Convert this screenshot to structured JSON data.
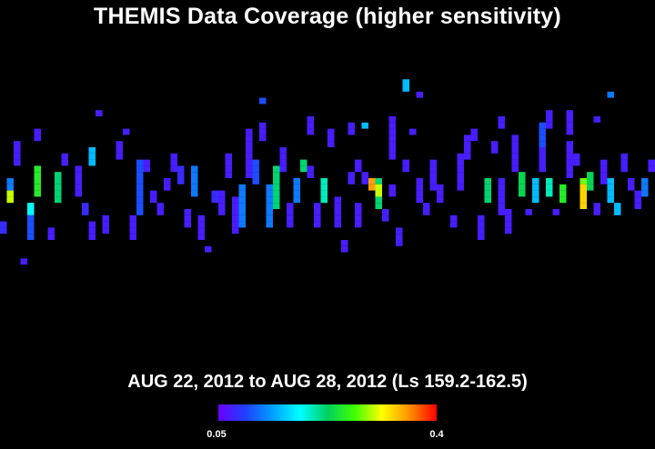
{
  "chart_data": {
    "type": "heatmap",
    "title": "THEMIS Data Coverage (higher sensitivity)",
    "subtitle": "AUG 22, 2012 to AUG 28, 2012 (Ls 159.2-162.5)",
    "colorbar": {
      "min_label": "0.05",
      "max_label": "0.4",
      "min": 0.05,
      "max": 0.4,
      "colors": [
        "#6a00ff",
        "#2040ff",
        "#00a0ff",
        "#00ffff",
        "#00d060",
        "#40ff00",
        "#ffff00",
        "#ff9000",
        "#ff0000"
      ]
    },
    "grid": {
      "columns": 96,
      "rows": 50
    },
    "tracks": [
      {
        "col": 0,
        "rows": [
          27,
          28
        ],
        "v": 0.08
      },
      {
        "col": 1,
        "rows": [
          20,
          21
        ],
        "v": 0.12
      },
      {
        "col": 1,
        "rows": [
          22,
          23
        ],
        "v": 0.3
      },
      {
        "col": 2,
        "rows": [
          14,
          15,
          16,
          17
        ],
        "v": 0.07
      },
      {
        "col": 3,
        "rows": [
          33
        ],
        "v": 0.07
      },
      {
        "col": 4,
        "rows": [
          24,
          25
        ],
        "v": 0.18
      },
      {
        "col": 4,
        "rows": [
          26,
          27,
          28,
          29
        ],
        "v": 0.1
      },
      {
        "col": 5,
        "rows": [
          12,
          13
        ],
        "v": 0.07
      },
      {
        "col": 5,
        "rows": [
          18,
          19,
          20,
          21,
          22
        ],
        "v": 0.25
      },
      {
        "col": 7,
        "rows": [
          28,
          29
        ],
        "v": 0.07
      },
      {
        "col": 8,
        "rows": [
          19,
          20,
          21,
          22,
          23
        ],
        "v": 0.22
      },
      {
        "col": 9,
        "rows": [
          16,
          17
        ],
        "v": 0.07
      },
      {
        "col": 11,
        "rows": [
          18,
          19,
          20,
          21,
          22
        ],
        "v": 0.07
      },
      {
        "col": 12,
        "rows": [
          24,
          25
        ],
        "v": 0.08
      },
      {
        "col": 13,
        "rows": [
          15,
          16,
          17
        ],
        "v": 0.15
      },
      {
        "col": 13,
        "rows": [
          27,
          28,
          29
        ],
        "v": 0.07
      },
      {
        "col": 14,
        "rows": [
          9
        ],
        "v": 0.07
      },
      {
        "col": 15,
        "rows": [
          26,
          27,
          28
        ],
        "v": 0.07
      },
      {
        "col": 17,
        "rows": [
          14,
          15,
          16
        ],
        "v": 0.07
      },
      {
        "col": 18,
        "rows": [
          12
        ],
        "v": 0.07
      },
      {
        "col": 19,
        "rows": [
          26,
          27,
          28,
          29
        ],
        "v": 0.07
      },
      {
        "col": 20,
        "rows": [
          17,
          18,
          19,
          20,
          21,
          22,
          23,
          24,
          25
        ],
        "v": 0.1
      },
      {
        "col": 21,
        "rows": [
          17,
          18
        ],
        "v": 0.07
      },
      {
        "col": 22,
        "rows": [
          22,
          23
        ],
        "v": 0.07
      },
      {
        "col": 23,
        "rows": [
          24,
          25
        ],
        "v": 0.07
      },
      {
        "col": 24,
        "rows": [
          20,
          21
        ],
        "v": 0.07
      },
      {
        "col": 25,
        "rows": [
          16,
          17,
          18
        ],
        "v": 0.07
      },
      {
        "col": 26,
        "rows": [
          18,
          19,
          20
        ],
        "v": 0.08
      },
      {
        "col": 27,
        "rows": [
          25,
          26,
          27
        ],
        "v": 0.07
      },
      {
        "col": 28,
        "rows": [
          18,
          19,
          20,
          21,
          22
        ],
        "v": 0.12
      },
      {
        "col": 29,
        "rows": [
          26,
          27,
          28,
          29
        ],
        "v": 0.07
      },
      {
        "col": 30,
        "rows": [
          31
        ],
        "v": 0.07
      },
      {
        "col": 31,
        "rows": [
          22,
          23
        ],
        "v": 0.08
      },
      {
        "col": 32,
        "rows": [
          22,
          23,
          24,
          25
        ],
        "v": 0.07
      },
      {
        "col": 33,
        "rows": [
          16,
          17,
          18,
          19
        ],
        "v": 0.07
      },
      {
        "col": 34,
        "rows": [
          23,
          24,
          25,
          26,
          27,
          28
        ],
        "v": 0.07
      },
      {
        "col": 35,
        "rows": [
          21,
          22,
          23,
          24,
          25,
          26,
          27
        ],
        "v": 0.12
      },
      {
        "col": 36,
        "rows": [
          12,
          13,
          14,
          15,
          16,
          17,
          18,
          19
        ],
        "v": 0.07
      },
      {
        "col": 37,
        "rows": [
          17,
          18,
          19,
          20
        ],
        "v": 0.1
      },
      {
        "col": 38,
        "rows": [
          7
        ],
        "v": 0.1
      },
      {
        "col": 38,
        "rows": [
          11,
          12,
          13
        ],
        "v": 0.07
      },
      {
        "col": 39,
        "rows": [
          21,
          22,
          23,
          24,
          25,
          26,
          27
        ],
        "v": 0.12
      },
      {
        "col": 40,
        "rows": [
          18,
          19,
          20,
          21,
          22,
          23,
          24
        ],
        "v": 0.22
      },
      {
        "col": 41,
        "rows": [
          15,
          16,
          17,
          18
        ],
        "v": 0.07
      },
      {
        "col": 42,
        "rows": [
          24,
          25,
          26,
          27
        ],
        "v": 0.07
      },
      {
        "col": 43,
        "rows": [
          20,
          21,
          22,
          23
        ],
        "v": 0.12
      },
      {
        "col": 44,
        "rows": [
          17,
          18
        ],
        "v": 0.22
      },
      {
        "col": 45,
        "rows": [
          10,
          11,
          12
        ],
        "v": 0.07
      },
      {
        "col": 45,
        "rows": [
          18,
          19
        ],
        "v": 0.07
      },
      {
        "col": 46,
        "rows": [
          24,
          25,
          26,
          27
        ],
        "v": 0.07
      },
      {
        "col": 47,
        "rows": [
          20,
          21,
          22,
          23
        ],
        "v": 0.2
      },
      {
        "col": 48,
        "rows": [
          12,
          13,
          14
        ],
        "v": 0.07
      },
      {
        "col": 49,
        "rows": [
          23,
          24,
          25,
          26,
          27
        ],
        "v": 0.07
      },
      {
        "col": 50,
        "rows": [
          30,
          31
        ],
        "v": 0.07
      },
      {
        "col": 51,
        "rows": [
          11,
          12
        ],
        "v": 0.07
      },
      {
        "col": 51,
        "rows": [
          19,
          20
        ],
        "v": 0.07
      },
      {
        "col": 52,
        "rows": [
          17,
          18
        ],
        "v": 0.07
      },
      {
        "col": 52,
        "rows": [
          24,
          25,
          26,
          27
        ],
        "v": 0.07
      },
      {
        "col": 53,
        "rows": [
          11
        ],
        "v": 0.15
      },
      {
        "col": 53,
        "rows": [
          19,
          20
        ],
        "v": 0.07
      },
      {
        "col": 54,
        "rows": [
          20,
          21
        ],
        "v": 0.35
      },
      {
        "col": 55,
        "rows": [
          20,
          21,
          22,
          23,
          24
        ],
        "v": 0.22
      },
      {
        "col": 55,
        "rows": [
          21,
          22
        ],
        "v": 0.3
      },
      {
        "col": 56,
        "rows": [
          25,
          26
        ],
        "v": 0.07
      },
      {
        "col": 57,
        "rows": [
          10,
          11,
          12,
          13,
          14,
          15,
          16
        ],
        "v": 0.07
      },
      {
        "col": 57,
        "rows": [
          21,
          22
        ],
        "v": 0.07
      },
      {
        "col": 58,
        "rows": [
          28,
          29
        ],
        "v": 0.07
      },
      {
        "col": 58,
        "rows": [
          30
        ],
        "v": 0.07
      },
      {
        "col": 59,
        "rows": [
          4,
          5
        ],
        "v": 0.15
      },
      {
        "col": 59,
        "rows": [
          17,
          18
        ],
        "v": 0.07
      },
      {
        "col": 60,
        "rows": [
          12
        ],
        "v": 0.07
      },
      {
        "col": 61,
        "rows": [
          6
        ],
        "v": 0.07
      },
      {
        "col": 61,
        "rows": [
          20,
          21,
          22,
          23
        ],
        "v": 0.07
      },
      {
        "col": 62,
        "rows": [
          24,
          25
        ],
        "v": 0.07
      },
      {
        "col": 63,
        "rows": [
          17,
          18,
          19,
          20,
          21
        ],
        "v": 0.07
      },
      {
        "col": 64,
        "rows": [
          21,
          22,
          23
        ],
        "v": 0.07
      },
      {
        "col": 66,
        "rows": [
          26,
          27
        ],
        "v": 0.07
      },
      {
        "col": 67,
        "rows": [
          16,
          17,
          18,
          19,
          20,
          21
        ],
        "v": 0.07
      },
      {
        "col": 68,
        "rows": [
          13,
          14,
          15,
          16
        ],
        "v": 0.07
      },
      {
        "col": 69,
        "rows": [
          12,
          13
        ],
        "v": 0.07
      },
      {
        "col": 70,
        "rows": [
          26,
          27,
          28,
          29
        ],
        "v": 0.07
      },
      {
        "col": 71,
        "rows": [
          20,
          21,
          22,
          23
        ],
        "v": 0.22
      },
      {
        "col": 72,
        "rows": [
          14,
          15
        ],
        "v": 0.07
      },
      {
        "col": 73,
        "rows": [
          10,
          11
        ],
        "v": 0.07
      },
      {
        "col": 73,
        "rows": [
          20,
          21,
          22,
          23,
          24,
          25
        ],
        "v": 0.07
      },
      {
        "col": 74,
        "rows": [
          25,
          26,
          27,
          28
        ],
        "v": 0.07
      },
      {
        "col": 75,
        "rows": [
          13,
          14,
          15,
          16,
          17,
          18
        ],
        "v": 0.07
      },
      {
        "col": 76,
        "rows": [
          19,
          20,
          21,
          22
        ],
        "v": 0.23
      },
      {
        "col": 77,
        "rows": [
          25
        ],
        "v": 0.07
      },
      {
        "col": 78,
        "rows": [
          20,
          21,
          22,
          23
        ],
        "v": 0.15
      },
      {
        "col": 79,
        "rows": [
          11,
          12,
          13,
          14,
          15,
          16,
          17
        ],
        "v": 0.1
      },
      {
        "col": 79,
        "rows": [
          15,
          16,
          17,
          18
        ],
        "v": 0.07
      },
      {
        "col": 80,
        "rows": [
          9,
          10,
          11
        ],
        "v": 0.07
      },
      {
        "col": 80,
        "rows": [
          20,
          21,
          22
        ],
        "v": 0.2
      },
      {
        "col": 81,
        "rows": [
          25
        ],
        "v": 0.07
      },
      {
        "col": 82,
        "rows": [
          21,
          22,
          23
        ],
        "v": 0.25
      },
      {
        "col": 83,
        "rows": [
          14,
          15,
          16,
          17,
          18,
          19
        ],
        "v": 0.07
      },
      {
        "col": 83,
        "rows": [
          9,
          10,
          11,
          12
        ],
        "v": 0.07
      },
      {
        "col": 84,
        "rows": [
          16,
          17
        ],
        "v": 0.07
      },
      {
        "col": 85,
        "rows": [
          20,
          21,
          22,
          23
        ],
        "v": 0.28
      },
      {
        "col": 85,
        "rows": [
          21,
          22,
          23,
          24
        ],
        "v": 0.33
      },
      {
        "col": 86,
        "rows": [
          19,
          20,
          21
        ],
        "v": 0.23
      },
      {
        "col": 87,
        "rows": [
          10
        ],
        "v": 0.07
      },
      {
        "col": 87,
        "rows": [
          24,
          25
        ],
        "v": 0.07
      },
      {
        "col": 88,
        "rows": [
          17,
          18,
          19,
          20
        ],
        "v": 0.07
      },
      {
        "col": 89,
        "rows": [
          6
        ],
        "v": 0.12
      },
      {
        "col": 89,
        "rows": [
          20,
          21,
          22,
          23
        ],
        "v": 0.15
      },
      {
        "col": 90,
        "rows": [
          24,
          25
        ],
        "v": 0.15
      },
      {
        "col": 91,
        "rows": [
          16,
          17,
          18
        ],
        "v": 0.07
      },
      {
        "col": 92,
        "rows": [
          20,
          21
        ],
        "v": 0.07
      },
      {
        "col": 93,
        "rows": [
          22,
          23,
          24
        ],
        "v": 0.07
      },
      {
        "col": 94,
        "rows": [
          20,
          21,
          22
        ],
        "v": 0.12
      },
      {
        "col": 95,
        "rows": [
          17,
          18
        ],
        "v": 0.07
      }
    ]
  }
}
